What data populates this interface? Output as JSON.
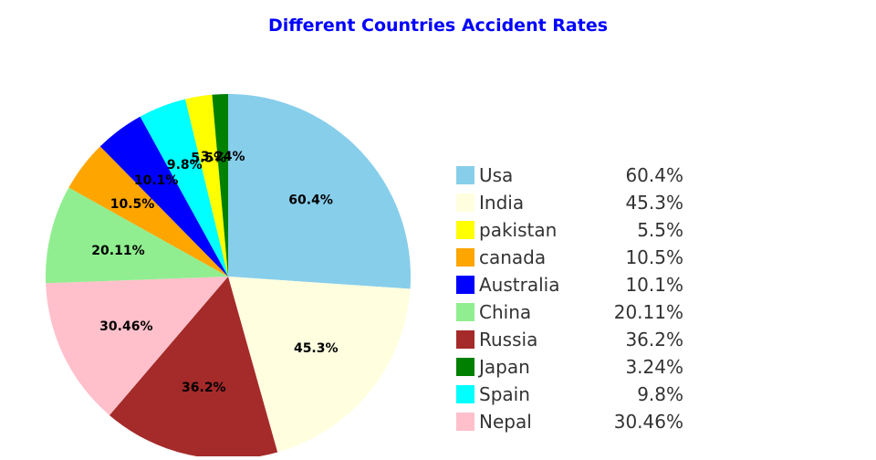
{
  "chart_data": {
    "type": "pie",
    "title": "Different Countries Accident Rates",
    "title_color": "#0000ff",
    "start_angle": "12 o'clock",
    "direction": "clockwise",
    "legend_position": "right",
    "slices": [
      {
        "label": "Usa",
        "value": 60.4,
        "display": "60.4%",
        "color": "#87ceeb"
      },
      {
        "label": "India",
        "value": 45.3,
        "display": "45.3%",
        "color": "#ffffe0"
      },
      {
        "label": "Russia",
        "value": 36.2,
        "display": "36.2%",
        "color": "#a52a2a"
      },
      {
        "label": "Nepal",
        "value": 30.46,
        "display": "30.46%",
        "color": "#ffc0cb"
      },
      {
        "label": "China",
        "value": 20.11,
        "display": "20.11%",
        "color": "#90ee90"
      },
      {
        "label": "canada",
        "value": 10.5,
        "display": "10.5%",
        "color": "#ffa500"
      },
      {
        "label": "Australia",
        "value": 10.1,
        "display": "10.1%",
        "color": "#0000ff"
      },
      {
        "label": "Spain",
        "value": 9.8,
        "display": "9.8%",
        "color": "#00ffff"
      },
      {
        "label": "pakistan",
        "value": 5.5,
        "display": "5.5%",
        "color": "#ffff00"
      },
      {
        "label": "Japan",
        "value": 3.24,
        "display": "3.24%",
        "color": "#008000"
      }
    ],
    "legend": [
      {
        "label": "Usa",
        "value": "60.4%",
        "color": "#87ceeb"
      },
      {
        "label": "India",
        "value": "45.3%",
        "color": "#ffffe0"
      },
      {
        "label": "pakistan",
        "value": "5.5%",
        "color": "#ffff00"
      },
      {
        "label": "canada",
        "value": "10.5%",
        "color": "#ffa500"
      },
      {
        "label": "Australia",
        "value": "10.1%",
        "color": "#0000ff"
      },
      {
        "label": "China",
        "value": "20.11%",
        "color": "#90ee90"
      },
      {
        "label": "Russia",
        "value": "36.2%",
        "color": "#a52a2a"
      },
      {
        "label": "Japan",
        "value": "3.24%",
        "color": "#008000"
      },
      {
        "label": "Spain",
        "value": "9.8%",
        "color": "#00ffff"
      },
      {
        "label": "Nepal",
        "value": "30.46%",
        "color": "#ffc0cb"
      }
    ]
  }
}
